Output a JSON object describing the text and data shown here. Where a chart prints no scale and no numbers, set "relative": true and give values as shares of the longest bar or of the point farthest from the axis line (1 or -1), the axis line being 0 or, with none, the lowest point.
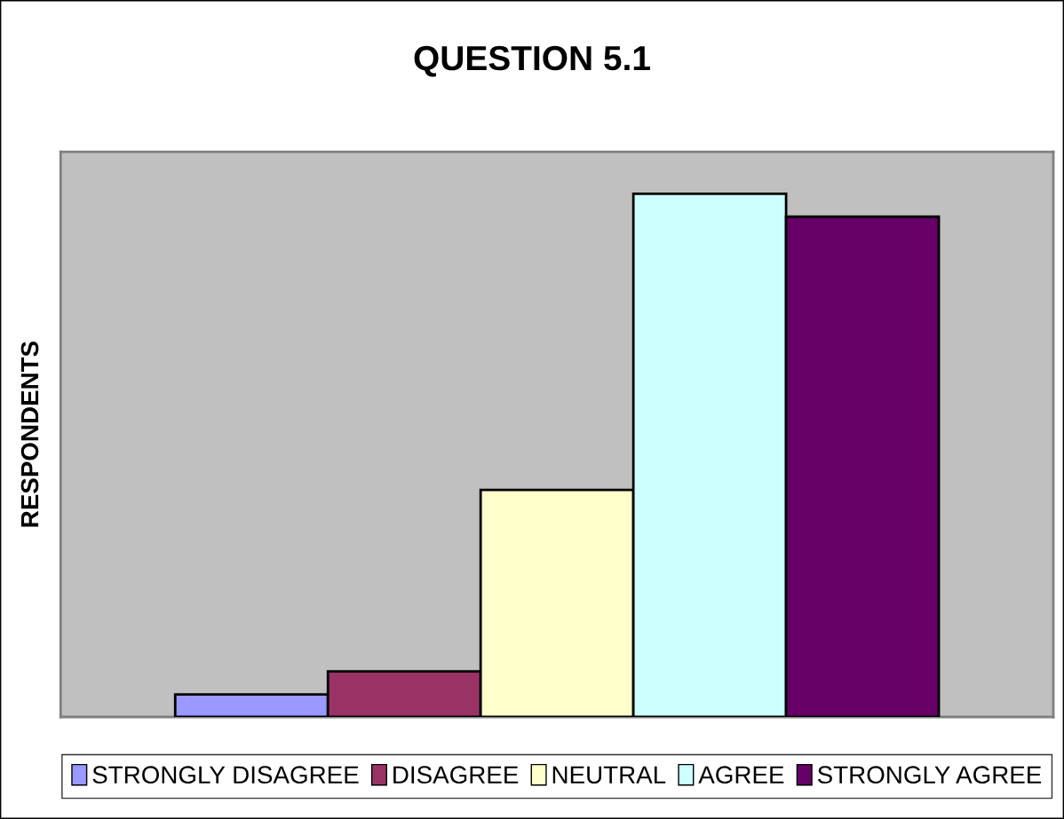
{
  "chart_data": {
    "type": "bar",
    "title": "QUESTION 5.1",
    "ylabel": "RESPONDENTS",
    "relative": true,
    "legend": "bottom",
    "categories": [
      null
    ],
    "series": [
      {
        "name": "STRONGLY DISAGREE",
        "color": "#9999ff",
        "values": [
          0.043
        ]
      },
      {
        "name": "DISAGREE",
        "color": "#993366",
        "values": [
          0.087
        ]
      },
      {
        "name": "NEUTRAL",
        "color": "#ffffcc",
        "values": [
          0.434
        ]
      },
      {
        "name": "AGREE",
        "color": "#ccffff",
        "values": [
          1
        ]
      },
      {
        "name": "STRONGLY AGREE",
        "color": "#660066",
        "values": [
          0.956
        ]
      }
    ]
  }
}
